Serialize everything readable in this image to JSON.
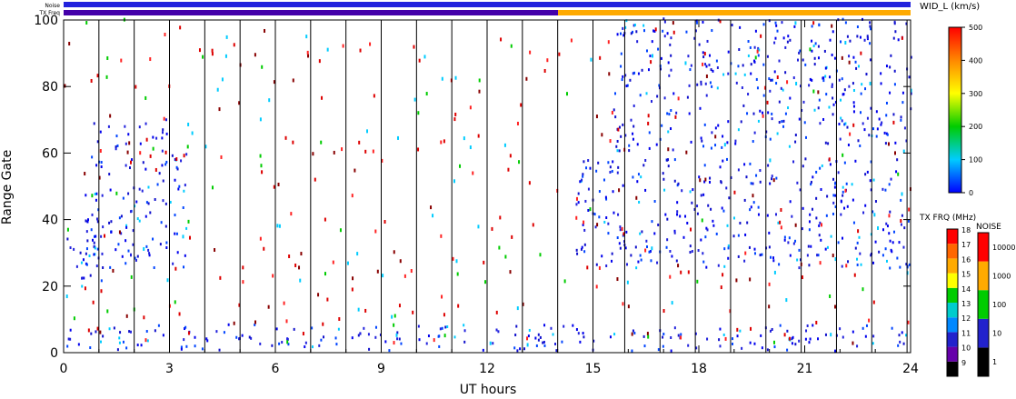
{
  "top_bars": {
    "noise_label": "Noise",
    "txfreq_label": "TX Freq",
    "noise_color": "#2222dd",
    "txfreq_left_color": "#4400aa",
    "txfreq_right_color": "#ffaa00"
  },
  "chart_data": {
    "type": "heatmap",
    "title": "",
    "xlabel": "UT hours",
    "ylabel": "Range Gate",
    "xlim": [
      0,
      24
    ],
    "ylim": [
      0,
      100
    ],
    "x_ticks": [
      "0",
      "3",
      "6",
      "9",
      "12",
      "15",
      "18",
      "21",
      "24"
    ],
    "x_tick_values": [
      0,
      3,
      6,
      9,
      12,
      15,
      18,
      21,
      24
    ],
    "y_ticks": [
      "0",
      "20",
      "40",
      "60",
      "80",
      "100"
    ],
    "y_tick_values": [
      0,
      20,
      40,
      60,
      80,
      100
    ],
    "scan_boundaries_ut": [
      1,
      2,
      3,
      4,
      5,
      6,
      7,
      8,
      9,
      10,
      11,
      12,
      13,
      14,
      15,
      15.9,
      16.9,
      17.9,
      18.9,
      19.9,
      20.9,
      21.9,
      22.9,
      23.9
    ],
    "scatter_regions": [
      {
        "name": "",
        "x": [
          0,
          1.1
        ],
        "y": [
          18,
          35
        ],
        "level": "low"
      },
      {
        "name": "",
        "x": [
          0.6,
          3.5
        ],
        "y": [
          25,
          70
        ],
        "level": "low"
      },
      {
        "name": "",
        "x": [
          14.5,
          24
        ],
        "y": [
          25,
          58
        ],
        "level": "low"
      },
      {
        "name": "",
        "x": [
          15.5,
          24
        ],
        "y": [
          60,
          100
        ],
        "level": "low"
      },
      {
        "name": "",
        "x": [
          0,
          24
        ],
        "y": [
          0,
          8
        ],
        "level": "low"
      }
    ],
    "colorbars": [
      {
        "title": "WID_L (km/s)",
        "ticks": [
          "0",
          "100",
          "200",
          "300",
          "400",
          "500"
        ],
        "tick_values": [
          0,
          100,
          200,
          300,
          400,
          500
        ],
        "colors": [
          "#0000ff",
          "#00ccff",
          "#00cc00",
          "#ffff00",
          "#ff8800",
          "#ff0000"
        ]
      },
      {
        "title": "TX FRQ (MHz)",
        "ticks": [
          "9",
          "10",
          "11",
          "12",
          "13",
          "14",
          "15",
          "16",
          "17",
          "18"
        ],
        "colors": [
          "#000000",
          "#6600aa",
          "#2222cc",
          "#0088ff",
          "#00cccc",
          "#00cc00",
          "#ffff00",
          "#ffaa00",
          "#ff6600",
          "#ff0000"
        ]
      },
      {
        "title": "NOISE",
        "ticks": [
          "1",
          "10",
          "100",
          "1000",
          "10000"
        ],
        "colors": [
          "#000000",
          "#2222cc",
          "#00cc00",
          "#ffaa00",
          "#ff0000"
        ]
      }
    ]
  }
}
